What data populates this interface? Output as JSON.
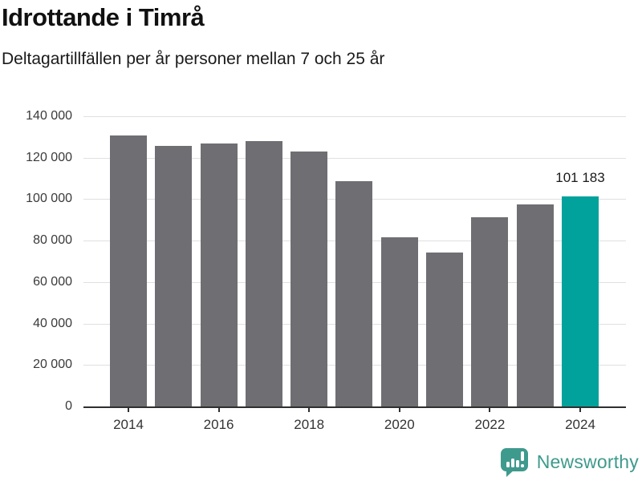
{
  "header": {
    "title": "Idrottande i Timrå",
    "subtitle": "Deltagartillfällen per år personer mellan 7 och 25 år"
  },
  "chart_data": {
    "type": "bar",
    "title": "Idrottande i Timrå",
    "subtitle": "Deltagartillfällen per år personer mellan 7 och 25 år",
    "categories": [
      "2014",
      "2015",
      "2016",
      "2017",
      "2018",
      "2019",
      "2020",
      "2021",
      "2022",
      "2023",
      "2024"
    ],
    "values": [
      130600,
      125600,
      127000,
      128200,
      122900,
      108700,
      81800,
      74400,
      91200,
      97600,
      101183
    ],
    "highlight_index": 10,
    "highlight_label": "101 183",
    "ylim": [
      0,
      140000
    ],
    "ytick_step": 20000,
    "ytick_labels": [
      "0",
      "20 000",
      "40 000",
      "60 000",
      "80 000",
      "100 000",
      "120 000",
      "140 000"
    ],
    "xtick_labels": [
      "2014",
      "2016",
      "2018",
      "2020",
      "2022",
      "2024"
    ],
    "grid": "horizontal",
    "legend": "none",
    "colors": {
      "bar": "#6e6e73",
      "highlight": "#00a29b",
      "gridline": "#e0e0e0",
      "axis": "#2f2f2f"
    }
  },
  "footer": {
    "brand": "Newsworthy",
    "brand_color": "#3e9a8d",
    "logo_icon": "newsworthy-speech-bubble-barchart-icon"
  }
}
